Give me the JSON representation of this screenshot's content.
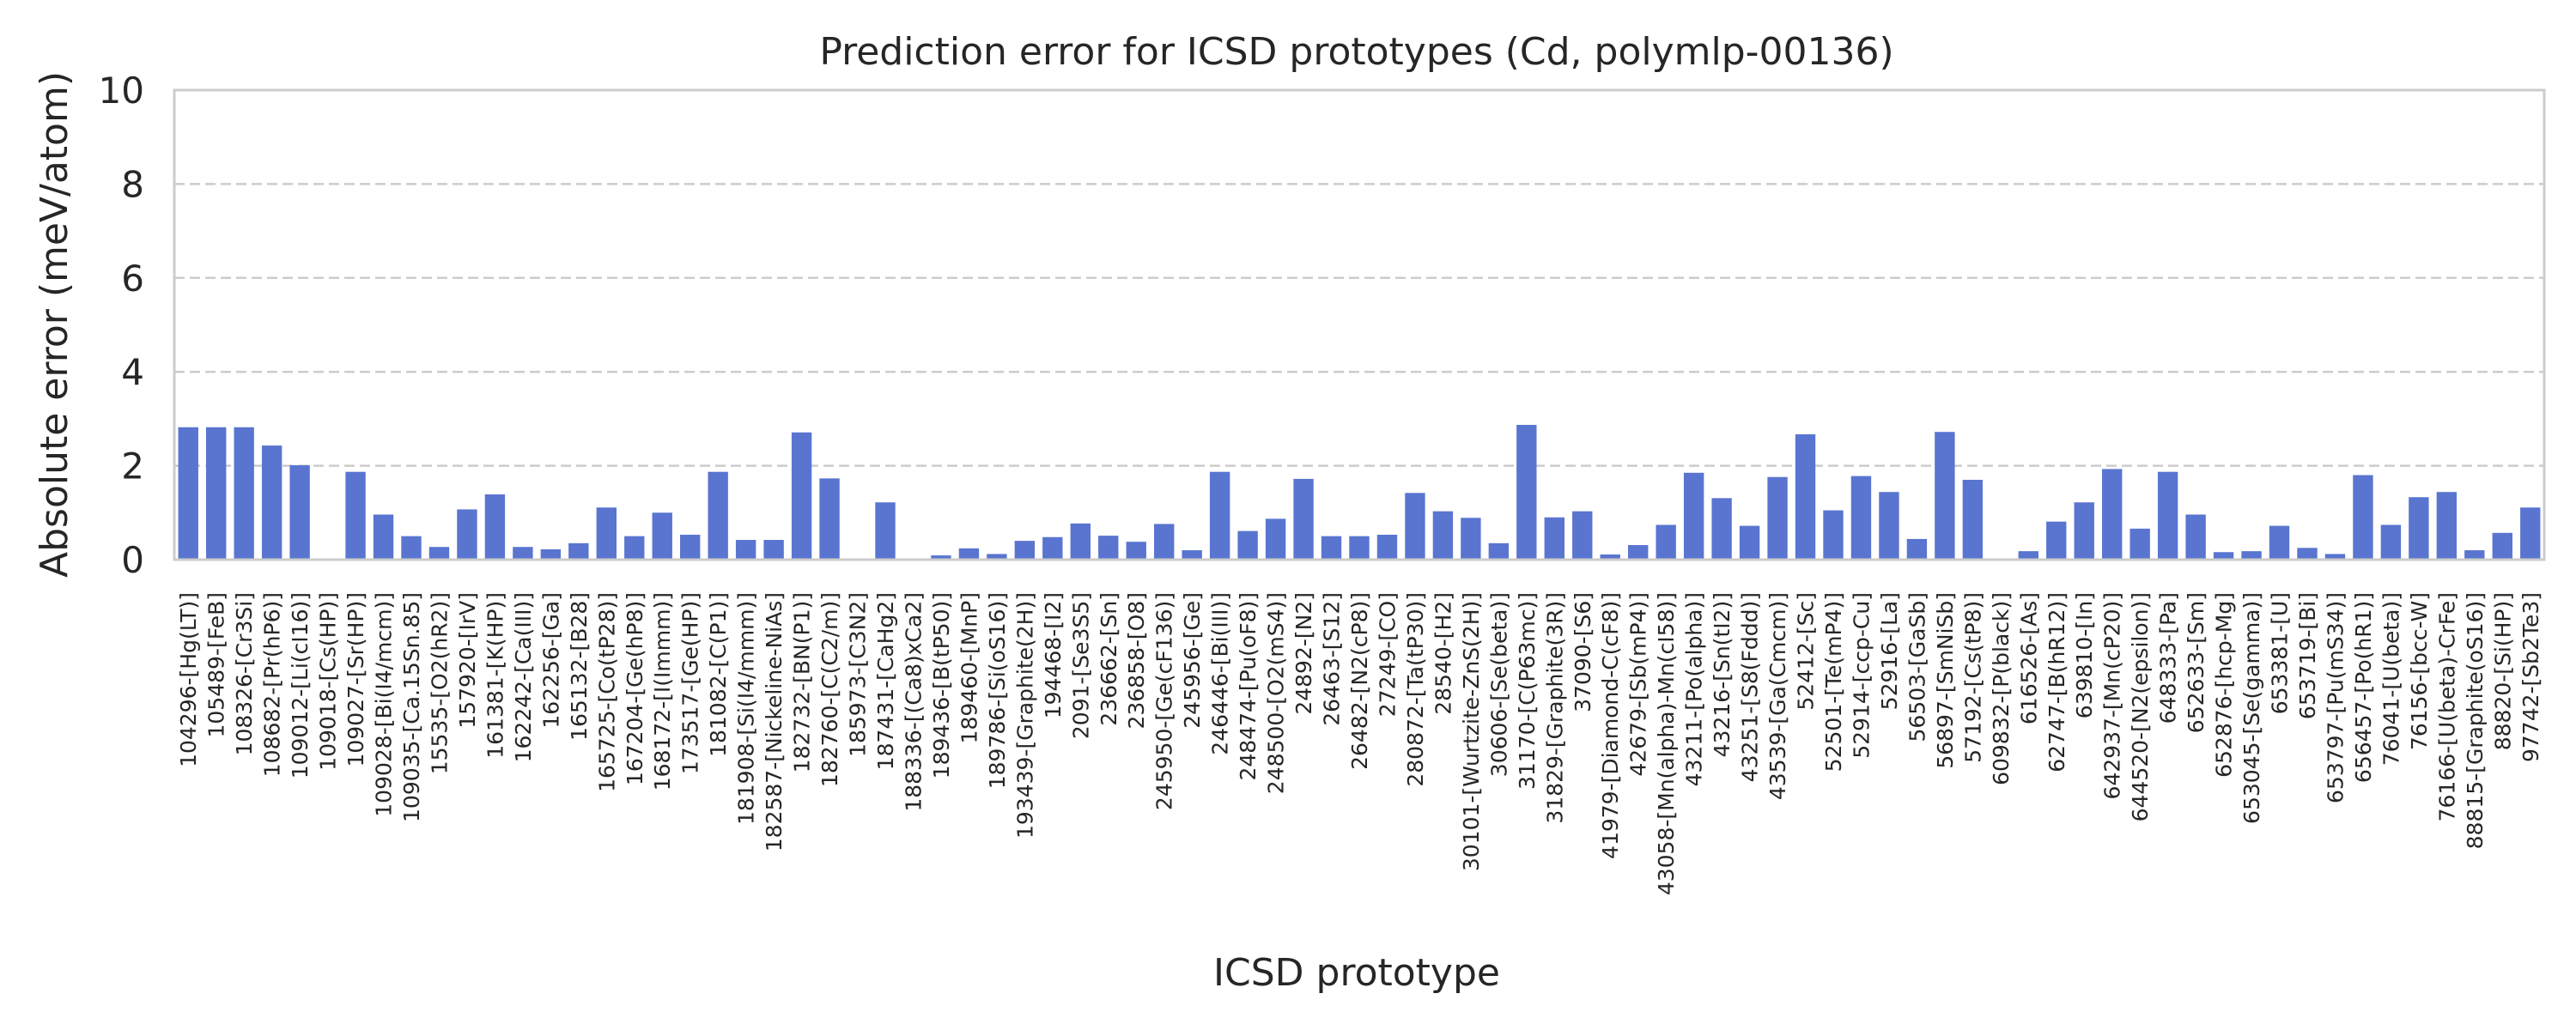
{
  "chart_data": {
    "type": "bar",
    "title": "Prediction error for ICSD prototypes (Cd, polymlp-00136)",
    "xlabel": "ICSD prototype",
    "ylabel": "Absolute error (meV/atom)",
    "ylim": [
      0,
      10
    ],
    "yticks": [
      "0",
      "2",
      "4",
      "6",
      "8",
      "10"
    ],
    "grid": "y-dashed",
    "bar_color": "#5975d0",
    "categories": [
      "104296-[Hg(LT)]",
      "105489-[FeB]",
      "108326-[Cr3Si]",
      "108682-[Pr(hP6)]",
      "109012-[Li(cI16)]",
      "109018-[Cs(HP)]",
      "109027-[Sr(HP)]",
      "109028-[Bi(I4/mcm)]",
      "109035-[Ca.15Sn.85]",
      "15535-[O2(hR2)]",
      "157920-[IrV]",
      "161381-[K(HP)]",
      "162242-[Ca(III)]",
      "162256-[Ga]",
      "165132-[B28]",
      "165725-[Co(tP28)]",
      "167204-[Ge(hP8)]",
      "168172-[I(Immm)]",
      "173517-[Ge(HP)]",
      "181082-[C(P1)]",
      "181908-[Si(I4/mmm)]",
      "182587-[Nickeline-NiAs]",
      "182732-[BN(P1)]",
      "182760-[C(C2/m)]",
      "185973-[C3N2]",
      "187431-[CaHg2]",
      "188336-[(Ca8)xCa2]",
      "189436-[B(tP50)]",
      "189460-[MnP]",
      "189786-[Si(oS16)]",
      "193439-[Graphite(2H)]",
      "194468-[I2]",
      "2091-[Se3S5]",
      "236662-[Sn]",
      "236858-[O8]",
      "245950-[Ge(cF136)]",
      "245956-[Ge]",
      "246446-[Bi(III)]",
      "248474-[Pu(oF8)]",
      "248500-[O2(mS4)]",
      "24892-[N2]",
      "26463-[S12]",
      "26482-[N2(cP8)]",
      "27249-[CO]",
      "280872-[Ta(tP30)]",
      "28540-[H2]",
      "30101-[Wurtzite-ZnS(2H)]",
      "30606-[Se(beta)]",
      "31170-[C(P63mc)]",
      "31829-[Graphite(3R)]",
      "37090-[S6]",
      "41979-[Diamond-C(cF8)]",
      "42679-[Sb(mP4)]",
      "43058-[Mn(alpha)-Mn(cI58)]",
      "43211-[Po(alpha)]",
      "43216-[Sn(tI2)]",
      "43251-[S8(Fddd)]",
      "43539-[Ga(Cmcm)]",
      "52412-[Sc]",
      "52501-[Te(mP4)]",
      "52914-[ccp-Cu]",
      "52916-[La]",
      "56503-[GaSb]",
      "56897-[SmNiSb]",
      "57192-[Cs(tP8)]",
      "609832-[P(black)]",
      "616526-[As]",
      "62747-[B(hR12)]",
      "639810-[In]",
      "642937-[Mn(cP20)]",
      "644520-[N2(epsilon)]",
      "648333-[Pa]",
      "652633-[Sm]",
      "652876-[hcp-Mg]",
      "653045-[Se(gamma)]",
      "653381-[U]",
      "653719-[Bi]",
      "653797-[Pu(mS34)]",
      "656457-[Po(hR1)]",
      "76041-[U(beta)]",
      "76156-[bcc-W]",
      "76166-[U(beta)-CrFe]",
      "88815-[Graphite(oS16)]",
      "88820-[Si(HP)]",
      "97742-[Sb2Te3]"
    ],
    "values": [
      2.82,
      2.82,
      2.82,
      2.43,
      2.01,
      0.02,
      1.87,
      0.96,
      0.5,
      0.27,
      1.07,
      1.39,
      0.27,
      0.22,
      0.35,
      1.11,
      0.5,
      1.0,
      0.53,
      1.87,
      0.42,
      0.42,
      2.71,
      1.73,
      0.0,
      1.22,
      0.0,
      0.09,
      0.24,
      0.12,
      0.4,
      0.48,
      0.77,
      0.51,
      0.38,
      0.76,
      0.2,
      1.87,
      0.61,
      0.87,
      1.72,
      0.5,
      0.5,
      0.53,
      1.42,
      1.03,
      0.89,
      0.35,
      2.87,
      0.9,
      1.03,
      0.11,
      0.31,
      0.74,
      1.85,
      1.31,
      0.72,
      1.76,
      2.67,
      1.05,
      1.78,
      1.44,
      0.44,
      2.72,
      1.7,
      0.0,
      0.18,
      0.81,
      1.22,
      1.93,
      0.66,
      1.87,
      0.96,
      0.16,
      0.18,
      0.72,
      0.25,
      0.12,
      1.8,
      0.74,
      1.33,
      1.44,
      0.2,
      0.57,
      1.11
    ]
  }
}
